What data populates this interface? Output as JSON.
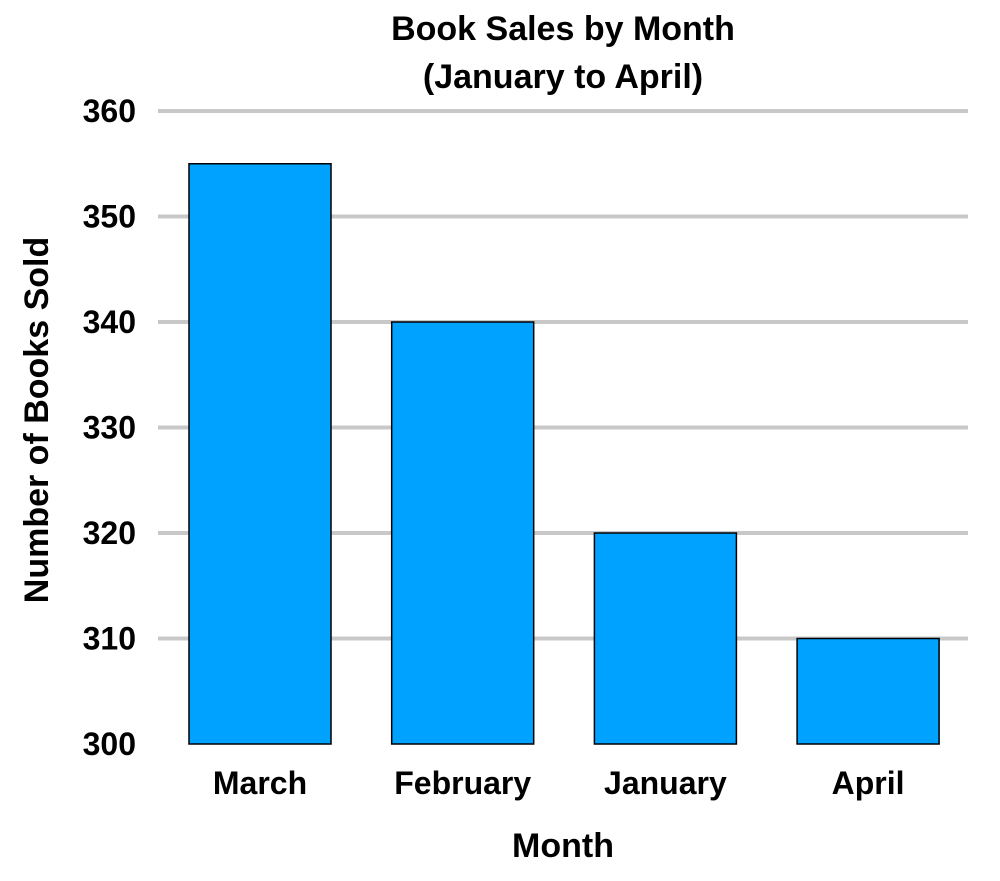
{
  "chart_data": {
    "type": "bar",
    "title": "Book Sales by Month",
    "subtitle": "(January to April)",
    "xlabel": "Month",
    "ylabel": "Number of Books Sold",
    "categories": [
      "March",
      "February",
      "January",
      "April"
    ],
    "values": [
      355,
      340,
      320,
      310
    ],
    "ylim": [
      300,
      360
    ],
    "yticks": [
      300,
      310,
      320,
      330,
      340,
      350,
      360
    ],
    "grid": true,
    "colors": {
      "bar": "#00a2ff",
      "bar_edge": "#000000",
      "grid": "#c8c8c8"
    }
  }
}
